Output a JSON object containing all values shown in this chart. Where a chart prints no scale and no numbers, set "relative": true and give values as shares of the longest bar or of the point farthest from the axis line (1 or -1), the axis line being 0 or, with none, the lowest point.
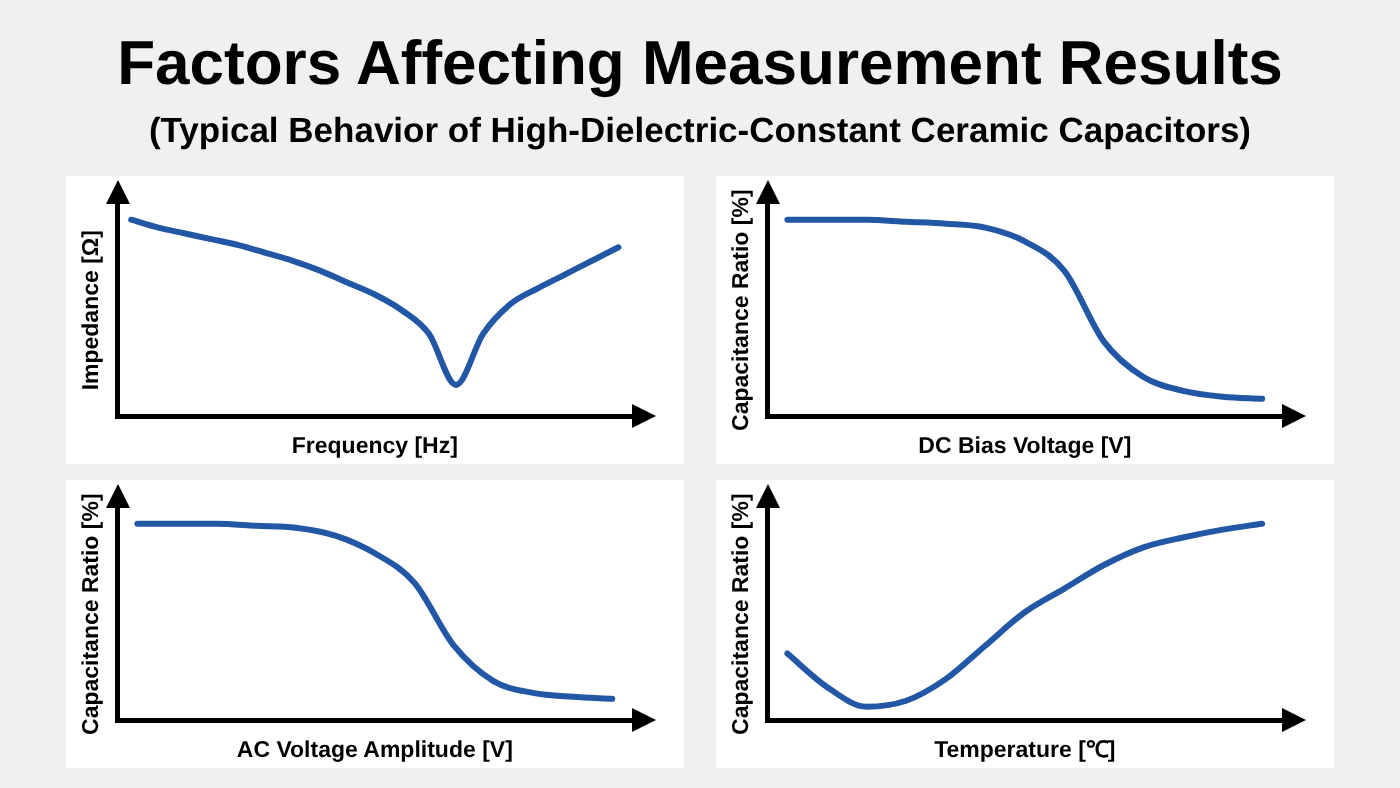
{
  "chart_data": [
    {
      "type": "line",
      "title": "Factors Affecting Measurement Results",
      "subtitle": "(Typical Behavior of High-Dielectric-Constant Ceramic Capacitors)",
      "xlabel": "Frequency [Hz]",
      "ylabel": "Impedance [Ω]",
      "relative": true,
      "marker": "none",
      "categories": [
        null,
        null,
        null,
        null,
        null,
        null,
        null,
        null,
        null,
        null,
        null,
        null,
        null,
        null,
        null,
        null,
        null,
        null,
        null
      ],
      "series": [
        {
          "color": "#2257a5",
          "values": [
            1,
            0.96,
            0.93,
            0.9,
            0.87,
            0.83,
            0.79,
            0.74,
            0.68,
            0.62,
            0.54,
            0.42,
            0.16,
            0.42,
            0.57,
            0.65,
            0.72,
            0.79,
            0.86
          ]
        }
      ]
    },
    {
      "type": "line",
      "xlabel": "DC Bias Voltage [V]",
      "ylabel": "Capacitance Ratio [%]",
      "relative": true,
      "marker": "none",
      "categories": [
        null,
        null,
        null,
        null,
        null,
        null,
        null,
        null,
        null,
        null,
        null,
        null,
        null
      ],
      "series": [
        {
          "color": "#2257a5",
          "values": [
            1,
            1,
            1,
            0.99,
            0.98,
            0.96,
            0.89,
            0.74,
            0.38,
            0.2,
            0.13,
            0.1,
            0.09
          ]
        }
      ]
    },
    {
      "type": "line",
      "xlabel": "AC Voltage Amplitude [V]",
      "ylabel": "Capacitance Ratio [%]",
      "relative": true,
      "marker": "none",
      "categories": [
        null,
        null,
        null,
        null,
        null,
        null,
        null,
        null,
        null,
        null,
        null,
        null,
        null
      ],
      "series": [
        {
          "color": "#2257a5",
          "values": [
            1,
            1,
            1,
            0.99,
            0.98,
            0.94,
            0.85,
            0.7,
            0.38,
            0.2,
            0.14,
            0.12,
            0.11
          ]
        }
      ]
    },
    {
      "type": "line",
      "xlabel": "Temperature [℃]",
      "ylabel": "Capacitance Ratio [%]",
      "relative": true,
      "marker": "none",
      "categories": [
        null,
        null,
        null,
        null,
        null,
        null,
        null,
        null,
        null,
        null,
        null,
        null,
        null
      ],
      "series": [
        {
          "color": "#2257a5",
          "values": [
            0.34,
            0.17,
            0.07,
            0.1,
            0.21,
            0.38,
            0.55,
            0.67,
            0.79,
            0.88,
            0.93,
            0.97,
            1
          ]
        }
      ]
    }
  ]
}
